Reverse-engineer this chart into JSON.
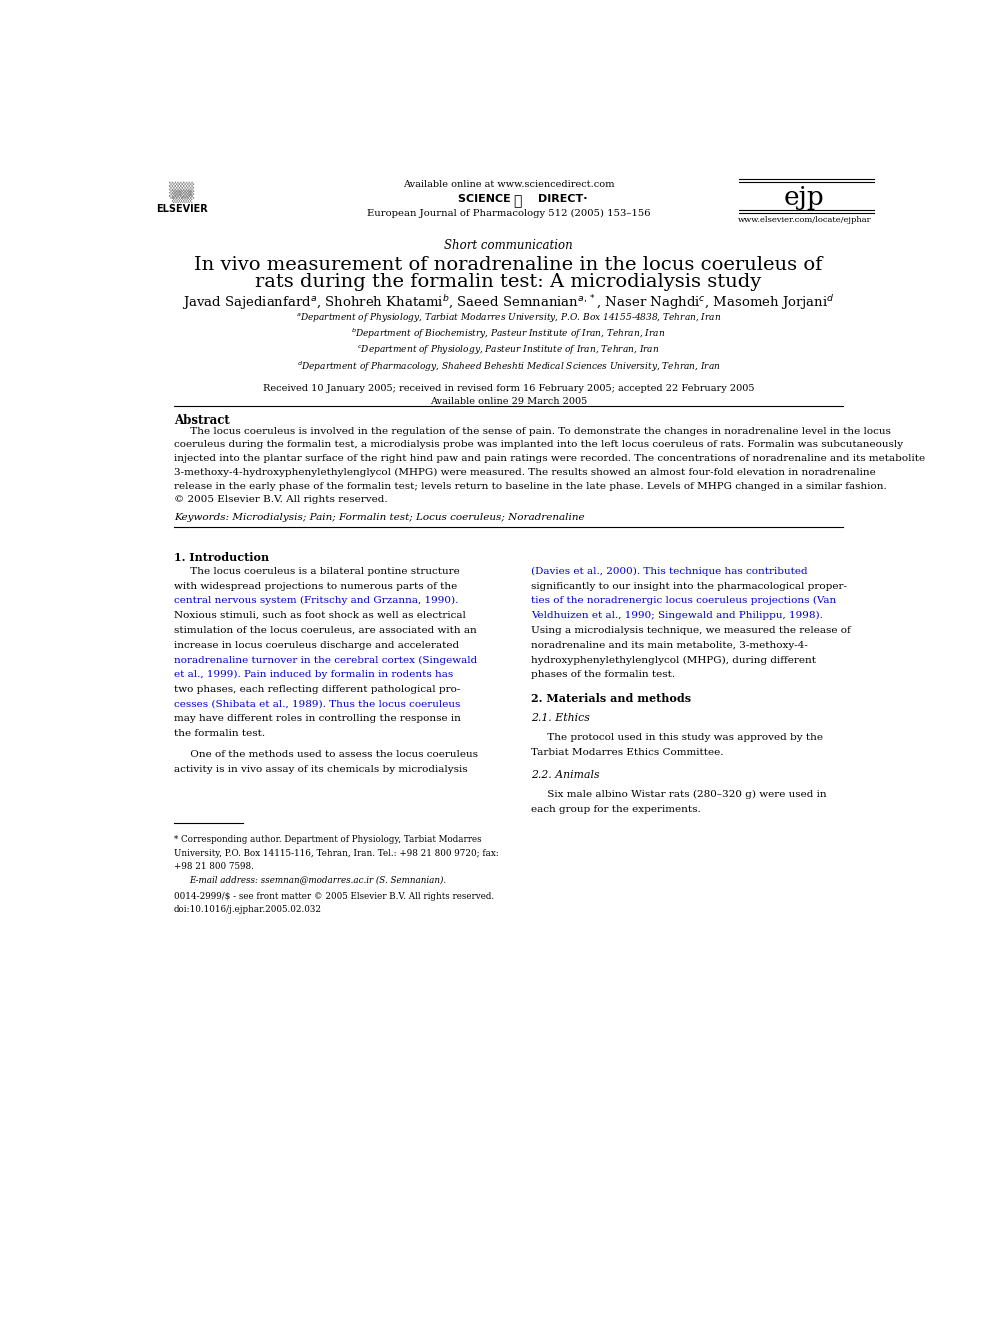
{
  "page_bg": "#ffffff",
  "page_width": 9.92,
  "page_height": 13.23,
  "header_available_online": "Available online at www.sciencedirect.com",
  "header_journal": "European Journal of Pharmacology 512 (2005) 153–156",
  "header_website": "www.elsevier.com/locate/ejphar",
  "section_label": "Short communication",
  "title_line1": "In vivo measurement of noradrenaline in the locus coeruleus of",
  "title_line2": "rats during the formalin test: A microdialysis study",
  "affil_a": "$^a$Department of Physiology, Tarbiat Modarres University, P.O. Box 14155-4838, Tehran, Iran",
  "affil_b": "$^b$Department of Biochemistry, Pasteur Institute of Iran, Tehran, Iran",
  "affil_c": "$^c$Department of Physiology, Pasteur Institute of Iran, Tehran, Iran",
  "affil_d": "$^d$Department of Pharmacology, Shaheed Beheshti Medical Sciences University, Tehran, Iran",
  "received": "Received 10 January 2005; received in revised form 16 February 2005; accepted 22 February 2005",
  "available_online": "Available online 29 March 2005",
  "abstract_title": "Abstract",
  "abstract_lines": [
    "     The locus coeruleus is involved in the regulation of the sense of pain. To demonstrate the changes in noradrenaline level in the locus",
    "coeruleus during the formalin test, a microdialysis probe was implanted into the left locus coeruleus of rats. Formalin was subcutaneously",
    "injected into the plantar surface of the right hind paw and pain ratings were recorded. The concentrations of noradrenaline and its metabolite",
    "3-methoxy-4-hydroxyphenylethylenglycol (MHPG) were measured. The results showed an almost four-fold elevation in noradrenaline",
    "release in the early phase of the formalin test; levels return to baseline in the late phase. Levels of MHPG changed in a similar fashion.",
    "© 2005 Elsevier B.V. All rights reserved."
  ],
  "keywords": "Keywords: Microdialysis; Pain; Formalin test; Locus coeruleus; Noradrenaline",
  "section1_title": "1. Introduction",
  "col1_lines": [
    "     The locus coeruleus is a bilateral pontine structure",
    "with widespread projections to numerous parts of the",
    "central nervous system (Fritschy and Grzanna, 1990).",
    "Noxious stimuli, such as foot shock as well as electrical",
    "stimulation of the locus coeruleus, are associated with an",
    "increase in locus coeruleus discharge and accelerated",
    "noradrenaline turnover in the cerebral cortex (Singewald",
    "et al., 1999). Pain induced by formalin in rodents has",
    "two phases, each reflecting different pathological pro-",
    "cesses (Shibata et al., 1989). Thus the locus coeruleus",
    "may have different roles in controlling the response in",
    "the formalin test.",
    "",
    "     One of the methods used to assess the locus coeruleus",
    "activity is in vivo assay of its chemicals by microdialysis"
  ],
  "col1_blue_lines": [
    2,
    6,
    7,
    9
  ],
  "col2_lines": [
    "(Davies et al., 2000). This technique has contributed",
    "significantly to our insight into the pharmacological proper-",
    "ties of the noradrenergic locus coeruleus projections (Van",
    "Veldhuizen et al., 1990; Singewald and Philippu, 1998).",
    "Using a microdialysis technique, we measured the release of",
    "noradrenaline and its main metabolite, 3-methoxy-4-",
    "hydroxyphenylethylenglycol (MHPG), during different",
    "phases of the formalin test."
  ],
  "col2_blue_lines": [
    0,
    2,
    3
  ],
  "section2_title": "2. Materials and methods",
  "section2_1_title": "2.1. Ethics",
  "section2_1_lines": [
    "     The protocol used in this study was approved by the",
    "Tarbiat Modarres Ethics Committee."
  ],
  "section2_2_title": "2.2. Animals",
  "section2_2_lines": [
    "     Six male albino Wistar rats (280–320 g) were used in",
    "each group for the experiments."
  ],
  "footnote_lines": [
    "* Corresponding author. Department of Physiology, Tarbiat Modarres",
    "University, P.O. Box 14115-116, Tehran, Iran. Tel.: +98 21 800 9720; fax:",
    "+98 21 800 7598."
  ],
  "footnote_email": "E-mail address: ssemnan@modarres.ac.ir (S. Semnanian).",
  "footnote_issn": "0014-2999/$ - see front matter © 2005 Elsevier B.V. All rights reserved.",
  "footnote_doi": "doi:10.1016/j.ejphar.2005.02.032",
  "link_color": "#0000cc",
  "text_color": "#000000"
}
